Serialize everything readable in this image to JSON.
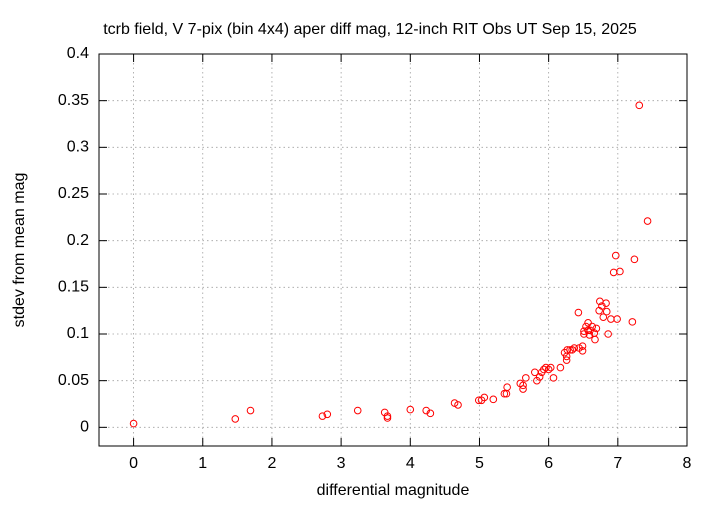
{
  "chart_data": {
    "type": "scatter",
    "title": "tcrb field, V 7-pix (bin 4x4) aper diff mag,  12-inch RIT Obs UT Sep 15, 2025",
    "x_label": "differential magnitude",
    "y_label": "stdev from mean mag",
    "color": "#ff0000",
    "grid": true,
    "xlim": [
      -0.5,
      8
    ],
    "ylim": [
      -0.02,
      0.4
    ],
    "xticks": [
      0,
      1,
      2,
      3,
      4,
      5,
      6,
      7,
      8
    ],
    "yticks": [
      0,
      0.05,
      0.1,
      0.15,
      0.2,
      0.25,
      0.3,
      0.35,
      0.4
    ],
    "x": [
      0,
      1.47,
      1.69,
      2.73,
      2.8,
      3.24,
      3.63,
      3.67,
      3.67,
      4.0,
      4.23,
      4.29,
      4.64,
      4.69,
      4.99,
      5.03,
      5.07,
      5.2,
      5.36,
      5.39,
      5.4,
      5.59,
      5.63,
      5.63,
      5.67,
      5.8,
      5.83,
      5.87,
      5.9,
      5.93,
      5.96,
      6.0,
      6.03,
      6.07,
      6.17,
      6.23,
      6.26,
      6.26,
      6.27,
      6.31,
      6.34,
      6.37,
      6.43,
      6.44,
      6.49,
      6.49,
      6.51,
      6.51,
      6.54,
      6.57,
      6.57,
      6.59,
      6.6,
      6.63,
      6.66,
      6.67,
      6.69,
      6.73,
      6.74,
      6.77,
      6.79,
      6.83,
      6.84,
      6.86,
      6.9,
      6.94,
      6.97,
      6.99,
      7.03,
      7.21,
      7.24,
      7.31,
      7.43
    ],
    "values": [
      0.004,
      0.009,
      0.018,
      0.012,
      0.014,
      0.018,
      0.016,
      0.012,
      0.01,
      0.019,
      0.018,
      0.015,
      0.026,
      0.024,
      0.029,
      0.029,
      0.032,
      0.03,
      0.036,
      0.036,
      0.043,
      0.047,
      0.045,
      0.041,
      0.053,
      0.059,
      0.05,
      0.054,
      0.059,
      0.062,
      0.064,
      0.062,
      0.064,
      0.053,
      0.064,
      0.08,
      0.076,
      0.072,
      0.083,
      0.083,
      0.083,
      0.085,
      0.123,
      0.085,
      0.087,
      0.082,
      0.103,
      0.1,
      0.108,
      0.112,
      0.104,
      0.099,
      0.104,
      0.108,
      0.101,
      0.094,
      0.106,
      0.125,
      0.135,
      0.13,
      0.118,
      0.133,
      0.124,
      0.1,
      0.116,
      0.166,
      0.184,
      0.116,
      0.167,
      0.113,
      0.18,
      0.345,
      0.221
    ]
  }
}
